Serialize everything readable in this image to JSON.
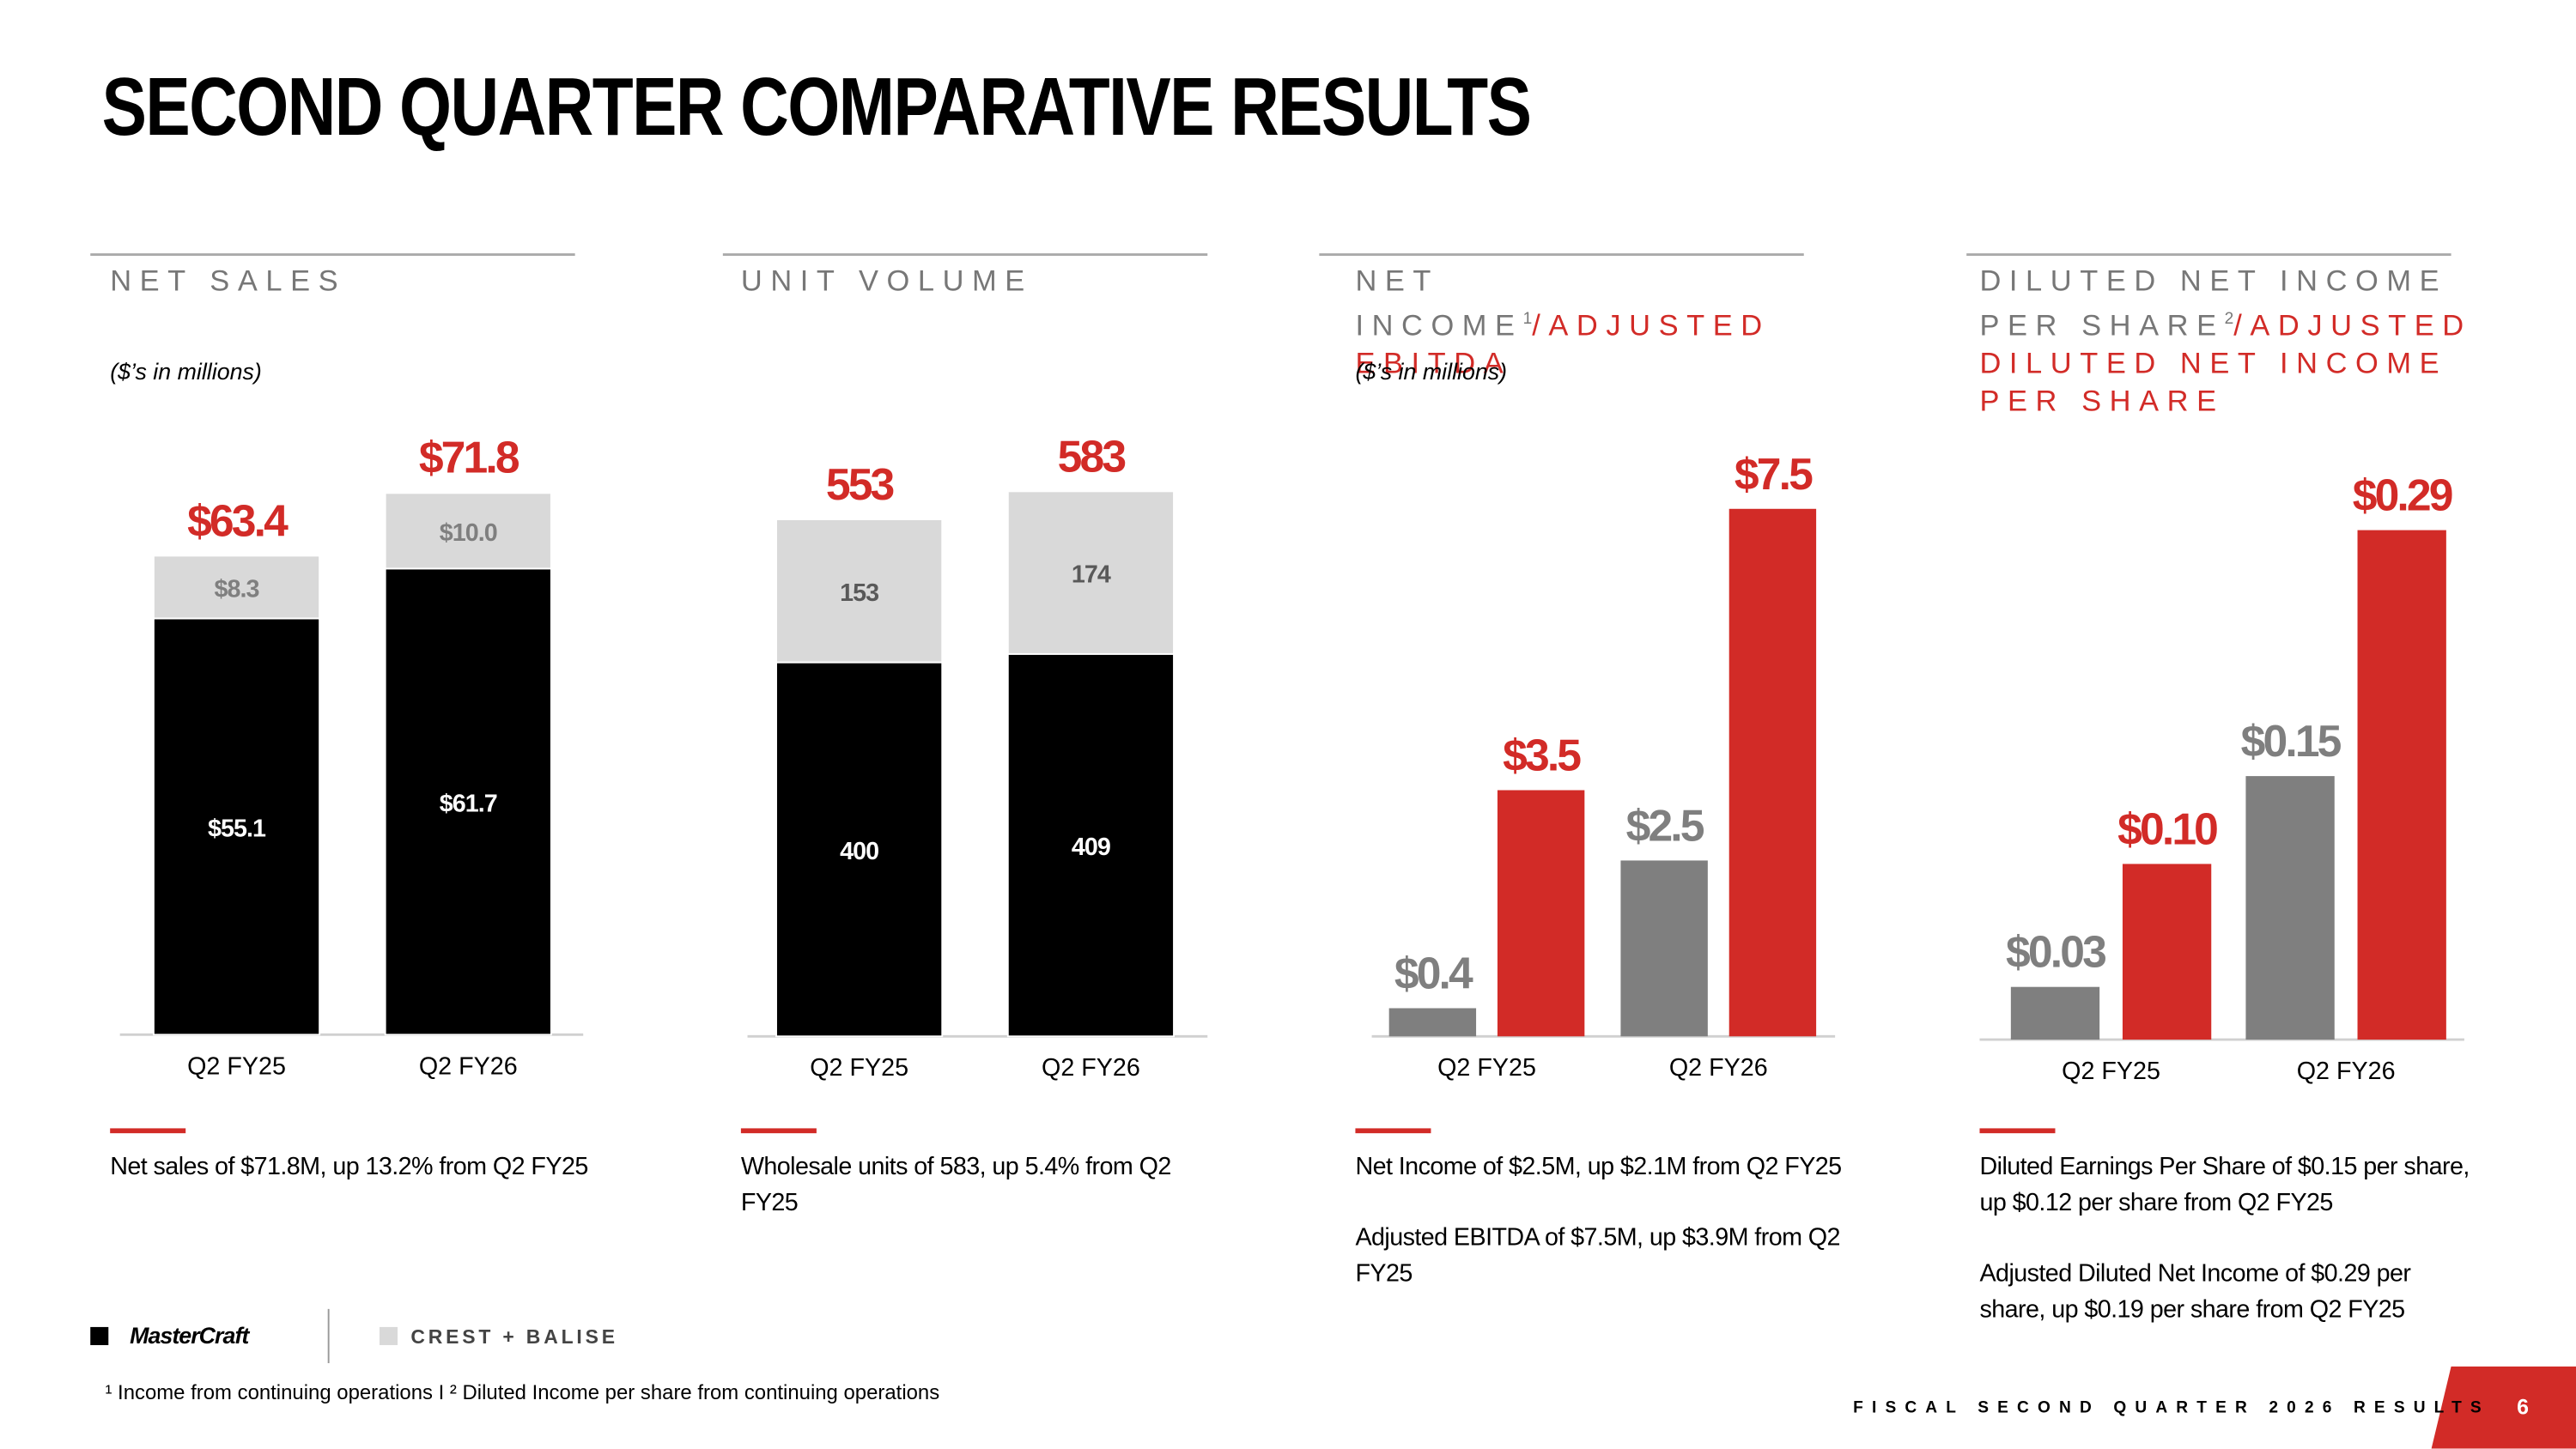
{
  "title": "SECOND QUARTER COMPARATIVE RESULTS",
  "chart_data": [
    {
      "type": "stacked_bar",
      "title": "NET SALES",
      "subtitle": "($’s in millions)",
      "categories": [
        "Q2 FY25",
        "Q2 FY26"
      ],
      "series": [
        {
          "name": "MasterCraft",
          "color": "#000000",
          "label_color": "#ffffff",
          "values": [
            55.1,
            61.7
          ],
          "value_labels": [
            "$55.1",
            "$61.7"
          ]
        },
        {
          "name": "CREST + BALISE",
          "color": "#d9d9d9",
          "label_color": "#7f7f7f",
          "values": [
            8.3,
            10.0
          ],
          "value_labels": [
            "$8.3",
            "$10.0"
          ]
        }
      ],
      "totals": [
        63.4,
        71.8
      ],
      "total_labels": [
        "$63.4",
        "$71.8"
      ],
      "total_color": "#d22b27",
      "ylim": [
        0,
        80
      ],
      "notes": [
        "Net sales of $71.8M, up 13.2% from Q2 FY25"
      ]
    },
    {
      "type": "stacked_bar",
      "title": "UNIT VOLUME",
      "categories": [
        "Q2 FY25",
        "Q2 FY26"
      ],
      "series": [
        {
          "color": "#000000",
          "label_color": "#ffffff",
          "values": [
            400,
            409
          ]
        },
        {
          "color": "#d9d9d9",
          "label_color": "#595959",
          "values": [
            153,
            174
          ]
        }
      ],
      "totals": [
        553,
        583
      ],
      "total_color": "#d22b27",
      "ylim": [
        0,
        650
      ],
      "notes": [
        "Wholesale units of 583, up 5.4% from Q2 FY25"
      ]
    },
    {
      "type": "grouped_bar",
      "title": "NET INCOME",
      "title_note": "1",
      "title_highlight": "/ADJUSTED EBITDA",
      "subtitle": "($’s in millions)",
      "categories": [
        "Q2 FY25",
        "Q2 FY26"
      ],
      "series": [
        {
          "color": "#7f7f7f",
          "values": [
            0.4,
            2.5
          ],
          "value_labels": [
            "$0.4",
            "$2.5"
          ]
        },
        {
          "color": "#d22b27",
          "values": [
            3.5,
            7.5
          ],
          "value_labels": [
            "$3.5",
            "$7.5"
          ]
        }
      ],
      "ylim": [
        0,
        8.5
      ],
      "notes": [
        "Net Income of $2.5M, up $2.1M from Q2 FY25",
        "Adjusted EBITDA of $7.5M, up $3.9M from Q2 FY25"
      ]
    },
    {
      "type": "grouped_bar",
      "title": "DILUTED NET INCOME PER SHARE",
      "title_note": "2",
      "title_highlight": "/ADJUSTED DILUTED NET INCOME PER SHARE",
      "categories": [
        "Q2 FY25",
        "Q2 FY26"
      ],
      "series": [
        {
          "color": "#7f7f7f",
          "values": [
            0.03,
            0.15
          ],
          "value_labels": [
            "$0.03",
            "$0.15"
          ]
        },
        {
          "color": "#d22b27",
          "values": [
            0.1,
            0.29
          ],
          "value_labels": [
            "$0.10",
            "$0.29"
          ]
        }
      ],
      "ylim": [
        0,
        0.33
      ],
      "notes": [
        "Diluted Earnings Per Share of $0.15 per share, up $0.12 per share from Q2 FY25",
        "Adjusted Diluted Net Income of $0.29 per share, up $0.19 per share from Q2 FY25"
      ]
    }
  ],
  "footnote": "¹ Income from continuing operations I ² Diluted Income per share from continuing operations",
  "footer": "FISCAL SECOND QUARTER 2026 RESULTS",
  "page_number": "6"
}
